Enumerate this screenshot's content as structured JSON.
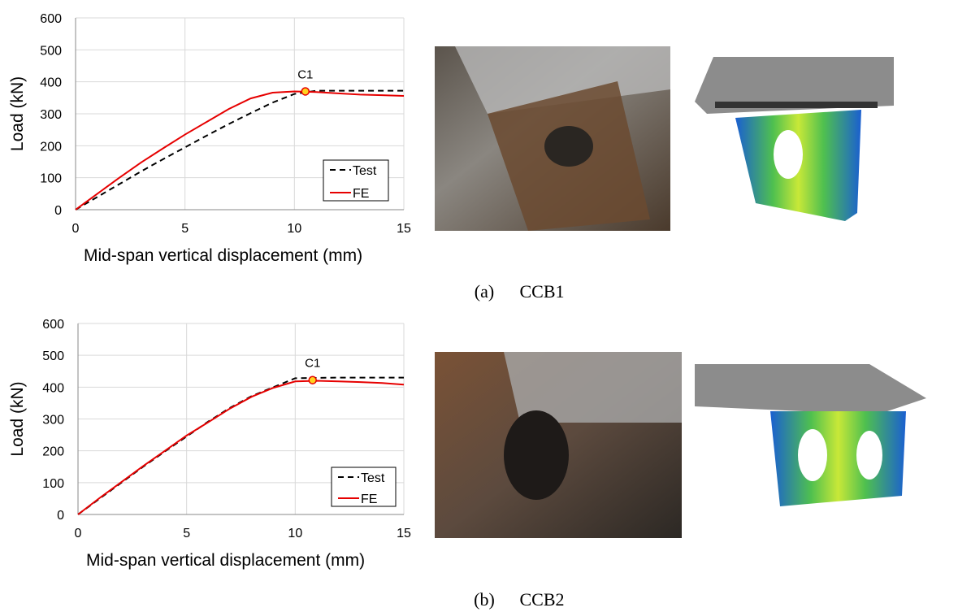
{
  "chart_data": [
    {
      "type": "line",
      "x_label": "Mid-span vertical displacement (mm)",
      "y_label": "Load (kN)",
      "x": [
        0,
        1,
        2,
        3,
        4,
        5,
        6,
        7,
        8,
        9,
        10,
        11,
        12,
        13,
        14,
        15
      ],
      "series": [
        {
          "name": "Test",
          "color": "#000000",
          "dash": true,
          "values": [
            0,
            40,
            80,
            120,
            158,
            195,
            232,
            268,
            302,
            335,
            362,
            372,
            372,
            372,
            372,
            372
          ]
        },
        {
          "name": "FE",
          "color": "#e60000",
          "dash": false,
          "values": [
            0,
            50,
            100,
            148,
            192,
            235,
            275,
            315,
            348,
            366,
            370,
            368,
            364,
            360,
            358,
            356
          ]
        }
      ],
      "annotations": [
        {
          "text": "C1",
          "x": 10.5,
          "y": 370,
          "color": "#ffd21f"
        }
      ],
      "xlim": [
        0,
        15
      ],
      "ylim": [
        0,
        600
      ],
      "xticks": [
        0,
        5,
        10,
        15
      ],
      "yticks": [
        0,
        100,
        200,
        300,
        400,
        500,
        600
      ],
      "grid": true,
      "legend": "lower right"
    },
    {
      "type": "line",
      "x_label": "Mid-span vertical displacement (mm)",
      "y_label": "Load (kN)",
      "x": [
        0,
        1,
        2,
        3,
        4,
        5,
        6,
        7,
        8,
        9,
        10,
        11,
        12,
        13,
        14,
        15
      ],
      "series": [
        {
          "name": "Test",
          "color": "#000000",
          "dash": true,
          "values": [
            0,
            50,
            100,
            150,
            198,
            245,
            292,
            335,
            372,
            400,
            428,
            429,
            430,
            430,
            430,
            430
          ]
        },
        {
          "name": "FE",
          "color": "#e60000",
          "dash": false,
          "values": [
            0,
            52,
            102,
            152,
            200,
            248,
            290,
            333,
            370,
            398,
            418,
            420,
            418,
            416,
            413,
            408
          ]
        }
      ],
      "annotations": [
        {
          "text": "C1",
          "x": 10.8,
          "y": 422,
          "color": "#ffd21f"
        }
      ],
      "xlim": [
        0,
        15
      ],
      "ylim": [
        0,
        600
      ],
      "xticks": [
        0,
        5,
        10,
        15
      ],
      "yticks": [
        0,
        100,
        200,
        300,
        400,
        500,
        600
      ],
      "grid": true,
      "legend": "lower right"
    }
  ],
  "captions": [
    {
      "label": "(a)",
      "name": "CCB1"
    },
    {
      "label": "(b)",
      "name": "CCB2"
    }
  ]
}
